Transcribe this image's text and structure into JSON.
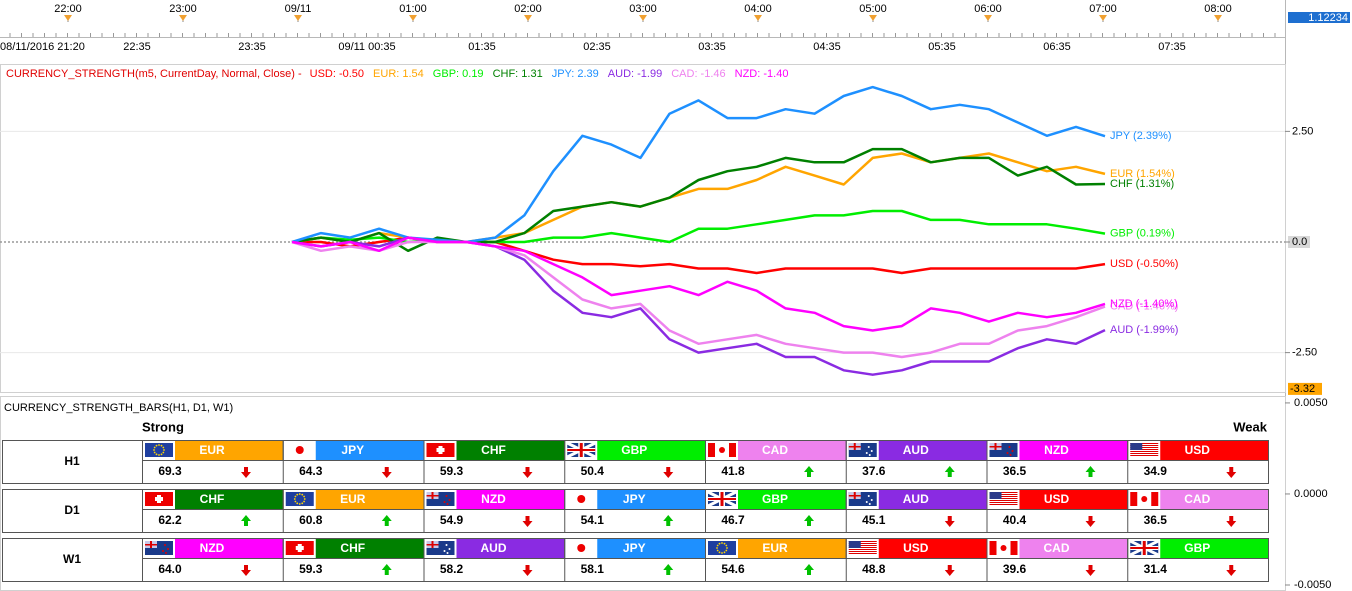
{
  "top_axis": {
    "labels": [
      "22:00",
      "23:00",
      "09/11",
      "01:00",
      "02:00",
      "03:00",
      "04:00",
      "05:00",
      "06:00",
      "07:00",
      "08:00"
    ],
    "sublabels": [
      "08/11/2016 21:20",
      "22:35",
      "23:35",
      "09/11 00:35",
      "01:35",
      "02:35",
      "03:35",
      "04:35",
      "05:35",
      "06:35",
      "07:35"
    ],
    "price_label": "1.12234"
  },
  "chart_data": {
    "type": "line",
    "title": "CURRENCY_STRENGTH(m5, CurrentDay, Normal, Close) -",
    "ylim": [
      -3.39,
      4.0
    ],
    "yticks": [
      {
        "value": 2.5,
        "label": "2.50"
      },
      {
        "value": 0,
        "label": "0.0"
      },
      {
        "value": -2.5,
        "label": "-2.50"
      }
    ],
    "low_marker": {
      "value": -3.32,
      "label": "-3.32"
    },
    "series": [
      {
        "name": "USD",
        "color": "#ff0000",
        "header_label": "USD: -0.50",
        "end_label": "USD (-0.50%)",
        "values": [
          0,
          0,
          -0.1,
          0,
          0.1,
          0,
          0,
          0,
          -0.2,
          -0.4,
          -0.5,
          -0.5,
          -0.55,
          -0.5,
          -0.6,
          -0.6,
          -0.7,
          -0.6,
          -0.6,
          -0.6,
          -0.6,
          -0.7,
          -0.6,
          -0.6,
          -0.6,
          -0.6,
          -0.6,
          -0.6,
          -0.5
        ]
      },
      {
        "name": "EUR",
        "color": "#ffa500",
        "header_label": "EUR: 1.54",
        "end_label": "EUR (1.54%)",
        "values": [
          0,
          0.1,
          0,
          0.2,
          0.1,
          0,
          0,
          0.1,
          0.2,
          0.5,
          0.8,
          0.9,
          0.8,
          1.0,
          1.2,
          1.2,
          1.4,
          1.7,
          1.5,
          1.3,
          1.9,
          2.0,
          1.8,
          1.9,
          2.0,
          1.8,
          1.6,
          1.7,
          1.54
        ]
      },
      {
        "name": "GBP",
        "color": "#00ee00",
        "header_label": "GBP: 0.19",
        "end_label": "GBP (0.19%)",
        "values": [
          0,
          0.1,
          0.05,
          0.1,
          0,
          0.05,
          0,
          0,
          0,
          0.1,
          0.1,
          0.2,
          0.1,
          0,
          0.3,
          0.3,
          0.4,
          0.5,
          0.6,
          0.6,
          0.7,
          0.7,
          0.5,
          0.5,
          0.4,
          0.4,
          0.4,
          0.3,
          0.19
        ]
      },
      {
        "name": "CHF",
        "color": "#008000",
        "header_label": "CHF: 1.31",
        "end_label": "CHF (1.31%)",
        "values": [
          0,
          0.1,
          0,
          0.2,
          -0.2,
          0.1,
          0,
          0,
          0.2,
          0.7,
          0.8,
          0.9,
          0.8,
          1.0,
          1.4,
          1.6,
          1.7,
          1.9,
          1.8,
          1.8,
          2.1,
          2.1,
          1.8,
          1.9,
          1.9,
          1.5,
          1.7,
          1.3,
          1.31
        ]
      },
      {
        "name": "JPY",
        "color": "#1e90ff",
        "header_label": "JPY: 2.39",
        "end_label": "JPY (2.39%)",
        "values": [
          0,
          0.2,
          0.1,
          0.3,
          0.1,
          0.05,
          0,
          0.1,
          0.6,
          1.6,
          2.4,
          2.2,
          1.9,
          2.9,
          3.2,
          2.8,
          2.8,
          3.0,
          2.9,
          3.3,
          3.5,
          3.3,
          3.0,
          3.1,
          3.0,
          2.7,
          2.4,
          2.6,
          2.39
        ]
      },
      {
        "name": "AUD",
        "color": "#8a2be2",
        "header_label": "AUD: -1.99",
        "end_label": "AUD (-1.99%)",
        "values": [
          0,
          -0.1,
          0,
          -0.1,
          0.1,
          0,
          0,
          -0.1,
          -0.4,
          -1.1,
          -1.6,
          -1.7,
          -1.5,
          -2.2,
          -2.5,
          -2.4,
          -2.3,
          -2.6,
          -2.6,
          -2.9,
          -3.0,
          -2.9,
          -2.7,
          -2.7,
          -2.7,
          -2.4,
          -2.2,
          -2.3,
          -1.99
        ]
      },
      {
        "name": "CAD",
        "color": "#ee82ee",
        "header_label": "CAD: -1.46",
        "end_label": "CAD (-1.46%)",
        "values": [
          0,
          -0.2,
          -0.1,
          -0.2,
          0,
          0,
          0,
          -0.1,
          -0.3,
          -0.8,
          -1.3,
          -1.5,
          -1.4,
          -2.0,
          -2.3,
          -2.2,
          -2.1,
          -2.3,
          -2.4,
          -2.5,
          -2.5,
          -2.6,
          -2.5,
          -2.3,
          -2.3,
          -2.0,
          -1.9,
          -1.7,
          -1.46
        ]
      },
      {
        "name": "NZD",
        "color": "#ff00ff",
        "header_label": "NZD: -1.40",
        "end_label": "NZD (-1.40%)",
        "values": [
          0,
          -0.1,
          0,
          -0.2,
          0.1,
          0,
          0,
          -0.1,
          -0.2,
          -0.5,
          -0.8,
          -1.2,
          -1.1,
          -1.0,
          -1.2,
          -0.9,
          -1.1,
          -1.5,
          -1.6,
          -1.9,
          -2.0,
          -1.9,
          -1.5,
          -1.6,
          -1.8,
          -1.6,
          -1.7,
          -1.6,
          -1.4
        ]
      }
    ]
  },
  "bars_panel": {
    "title": "CURRENCY_STRENGTH_BARS(H1, D1, W1)",
    "ylim": [
      -0.00533,
      0.00538
    ],
    "yticks": [
      {
        "value": 0.005,
        "label": "0.0050"
      },
      {
        "value": 0,
        "label": "0.0000"
      },
      {
        "value": -0.005,
        "label": "-0.0050"
      }
    ],
    "strong": "Strong",
    "weak": "Weak",
    "rows": [
      {
        "label": "H1",
        "cells": [
          {
            "name": "EUR",
            "value": "69.3",
            "trend": "down"
          },
          {
            "name": "JPY",
            "value": "64.3",
            "trend": "down"
          },
          {
            "name": "CHF",
            "value": "59.3",
            "trend": "down"
          },
          {
            "name": "GBP",
            "value": "50.4",
            "trend": "down"
          },
          {
            "name": "CAD",
            "value": "41.8",
            "trend": "up"
          },
          {
            "name": "AUD",
            "value": "37.6",
            "trend": "up"
          },
          {
            "name": "NZD",
            "value": "36.5",
            "trend": "up"
          },
          {
            "name": "USD",
            "value": "34.9",
            "trend": "down"
          }
        ]
      },
      {
        "label": "D1",
        "cells": [
          {
            "name": "CHF",
            "value": "62.2",
            "trend": "up"
          },
          {
            "name": "EUR",
            "value": "60.8",
            "trend": "up"
          },
          {
            "name": "NZD",
            "value": "54.9",
            "trend": "down"
          },
          {
            "name": "JPY",
            "value": "54.1",
            "trend": "up"
          },
          {
            "name": "GBP",
            "value": "46.7",
            "trend": "up"
          },
          {
            "name": "AUD",
            "value": "45.1",
            "trend": "down"
          },
          {
            "name": "USD",
            "value": "40.4",
            "trend": "down"
          },
          {
            "name": "CAD",
            "value": "36.5",
            "trend": "down"
          }
        ]
      },
      {
        "label": "W1",
        "cells": [
          {
            "name": "NZD",
            "value": "64.0",
            "trend": "down"
          },
          {
            "name": "CHF",
            "value": "59.3",
            "trend": "up"
          },
          {
            "name": "AUD",
            "value": "58.2",
            "trend": "down"
          },
          {
            "name": "JPY",
            "value": "58.1",
            "trend": "up"
          },
          {
            "name": "EUR",
            "value": "54.6",
            "trend": "up"
          },
          {
            "name": "USD",
            "value": "48.8",
            "trend": "down"
          },
          {
            "name": "CAD",
            "value": "39.6",
            "trend": "down"
          },
          {
            "name": "GBP",
            "value": "31.4",
            "trend": "down"
          }
        ]
      }
    ]
  }
}
